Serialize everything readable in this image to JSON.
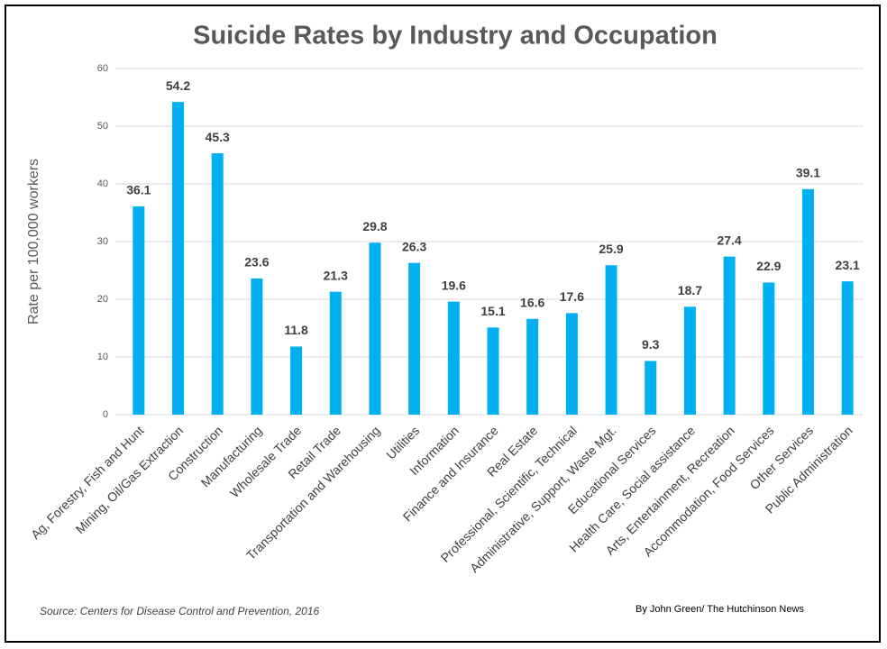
{
  "chart_data": {
    "type": "bar",
    "title": "Suicide Rates by Industry and Occupation",
    "y_label": "Rate per 100,000 workers",
    "source": "Source: Centers for Disease Control and Prevention, 2016",
    "credit": "By John Green/ The Hutchinson News",
    "categories": [
      "Ag, Forestry, Fish and Hunt",
      "Mining, Oil/Gas Extraction",
      "Construction",
      "Manufacturing",
      "Wholesale Trade",
      "Retail Trade",
      "Transportation and Warehousing",
      "Utilities",
      "Information",
      "Finance and Insurance",
      "Real Estate",
      "Professional, Scientific, Technical",
      "Administrative, Support, Waste Mgt.",
      "Educational Services",
      "Health Care, Social assistance",
      "Arts, Entertainment, Recreation",
      "Accommodation, Food Services",
      "Other Services",
      "Public Administration"
    ],
    "values": [
      36.1,
      54.2,
      45.3,
      23.6,
      11.8,
      21.3,
      29.8,
      26.3,
      19.6,
      15.1,
      16.6,
      17.6,
      25.9,
      9.3,
      18.7,
      27.4,
      22.9,
      39.1,
      23.1
    ],
    "color": "#00b0f0",
    "ylim": [
      0,
      60
    ],
    "yticks": [
      0,
      10,
      20,
      30,
      40,
      50,
      60
    ],
    "grid": true
  }
}
